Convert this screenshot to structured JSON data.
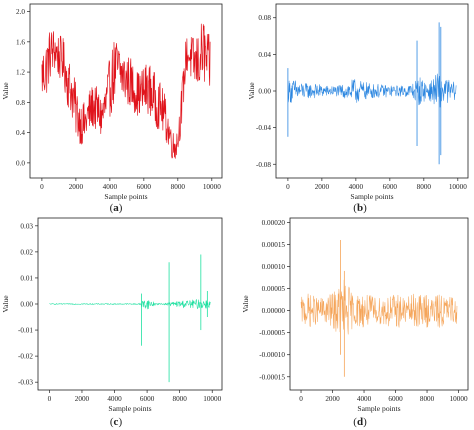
{
  "figure": {
    "panels": [
      {
        "letter_open": "(",
        "letter": "a",
        "letter_close": ")"
      },
      {
        "letter_open": "(",
        "letter": "b",
        "letter_close": ")"
      },
      {
        "letter_open": "(",
        "letter": "c",
        "letter_close": ")"
      },
      {
        "letter_open": "(",
        "letter": "d",
        "letter_close": ")"
      }
    ]
  },
  "chart_data": [
    {
      "type": "line",
      "title": "",
      "xlabel": "Sample points",
      "ylabel": "Value",
      "xlim": [
        -700,
        10600
      ],
      "ylim": [
        -0.2,
        2.1
      ],
      "xticks": [
        0,
        2000,
        4000,
        6000,
        8000,
        10000
      ],
      "yticks": [
        0.0,
        0.4,
        0.8,
        1.2,
        1.6,
        2.0
      ],
      "ytick_labels": [
        "0.0",
        "0.4",
        "0.8",
        "1.2",
        "1.6",
        "2.0"
      ],
      "color": "#e0141c",
      "series": [
        {
          "x": [
            0,
            250,
            500,
            750,
            1000,
            1250,
            1500,
            1750,
            2000,
            2250,
            2500,
            2750,
            3000,
            3250,
            3500,
            3750,
            4000,
            4250,
            4500,
            4750,
            5000,
            5250,
            5500,
            5750,
            6000,
            6250,
            6500,
            6750,
            7000,
            7250,
            7500,
            7750,
            8000,
            8250,
            8500,
            8750,
            9000,
            9250,
            9500,
            9750
          ],
          "values": [
            1.15,
            1.25,
            1.45,
            1.5,
            1.4,
            1.35,
            1.1,
            0.95,
            0.7,
            0.55,
            0.5,
            0.65,
            0.75,
            0.7,
            0.6,
            0.75,
            1.0,
            1.2,
            1.25,
            1.15,
            1.1,
            1.05,
            0.95,
            0.9,
            0.95,
            1.0,
            0.9,
            0.8,
            0.75,
            0.6,
            0.4,
            0.2,
            0.3,
            0.8,
            1.45,
            1.4,
            1.3,
            1.35,
            1.5,
            1.3
          ],
          "spread": [
            0.35,
            0.4,
            0.35,
            0.3,
            0.3,
            0.3,
            0.35,
            0.35,
            0.35,
            0.3,
            0.3,
            0.3,
            0.3,
            0.3,
            0.3,
            0.35,
            0.4,
            0.45,
            0.4,
            0.35,
            0.35,
            0.35,
            0.3,
            0.3,
            0.35,
            0.35,
            0.35,
            0.35,
            0.3,
            0.3,
            0.25,
            0.2,
            0.2,
            0.3,
            0.25,
            0.3,
            0.35,
            0.4,
            0.45,
            0.4
          ]
        }
      ]
    },
    {
      "type": "line",
      "title": "",
      "xlabel": "Sample points",
      "ylabel": "Value",
      "xlim": [
        -700,
        10600
      ],
      "ylim": [
        -0.095,
        0.095
      ],
      "xticks": [
        0,
        2000,
        4000,
        6000,
        8000,
        10000
      ],
      "yticks": [
        -0.08,
        -0.04,
        0.0,
        0.04,
        0.08
      ],
      "ytick_labels": [
        "-0.08",
        "-0.04",
        "0.00",
        "0.04",
        "0.08"
      ],
      "color": "#2b86e0",
      "series": [
        {
          "x": [
            0,
            250,
            500,
            750,
            1000,
            1250,
            1500,
            1750,
            2000,
            2250,
            2500,
            2750,
            3000,
            3250,
            3500,
            3750,
            4000,
            4250,
            4500,
            4750,
            5000,
            5250,
            5500,
            5750,
            6000,
            6250,
            6500,
            6750,
            7000,
            7250,
            7500,
            7750,
            8000,
            8250,
            8500,
            8750,
            9000,
            9250,
            9500,
            9750
          ],
          "values": [
            0,
            0,
            0,
            0,
            0,
            0,
            0,
            0,
            0,
            0,
            0,
            0,
            0,
            0,
            0,
            0,
            0,
            0,
            0,
            0,
            0,
            0,
            0,
            0,
            0,
            0,
            0,
            0,
            0,
            0,
            0,
            0,
            0,
            0,
            0,
            0,
            0,
            0,
            0,
            0
          ],
          "spread": [
            0.012,
            0.014,
            0.012,
            0.01,
            0.009,
            0.008,
            0.008,
            0.008,
            0.007,
            0.006,
            0.006,
            0.006,
            0.006,
            0.008,
            0.01,
            0.012,
            0.014,
            0.012,
            0.01,
            0.009,
            0.008,
            0.008,
            0.007,
            0.007,
            0.006,
            0.006,
            0.006,
            0.006,
            0.007,
            0.008,
            0.012,
            0.016,
            0.012,
            0.01,
            0.012,
            0.02,
            0.018,
            0.014,
            0.012,
            0.01
          ],
          "spikes": [
            {
              "x": 0,
              "min": -0.05,
              "max": 0.025
            },
            {
              "x": 7600,
              "min": -0.06,
              "max": 0.055
            },
            {
              "x": 8900,
              "min": -0.08,
              "max": 0.075
            },
            {
              "x": 9000,
              "min": -0.07,
              "max": 0.07
            }
          ]
        }
      ]
    },
    {
      "type": "line",
      "title": "",
      "xlabel": "Sample points",
      "ylabel": "Value",
      "xlim": [
        -700,
        10600
      ],
      "ylim": [
        -0.033,
        0.033
      ],
      "xticks": [
        0,
        2000,
        4000,
        6000,
        8000,
        10000
      ],
      "yticks": [
        -0.03,
        -0.02,
        -0.01,
        0.0,
        0.01,
        0.02,
        0.03
      ],
      "ytick_labels": [
        "-0.03",
        "-0.02",
        "-0.01",
        "0.00",
        "0.01",
        "0.02",
        "0.03"
      ],
      "color": "#1ee0a0",
      "series": [
        {
          "x": [
            0,
            250,
            500,
            750,
            1000,
            1250,
            1500,
            1750,
            2000,
            2250,
            2500,
            2750,
            3000,
            3250,
            3500,
            3750,
            4000,
            4250,
            4500,
            4750,
            5000,
            5250,
            5500,
            5750,
            6000,
            6250,
            6500,
            6750,
            7000,
            7250,
            7500,
            7750,
            8000,
            8250,
            8500,
            8750,
            9000,
            9250,
            9500,
            9750
          ],
          "values": [
            0,
            0,
            0,
            0,
            0,
            0,
            0,
            0,
            0,
            0,
            0,
            0,
            0,
            0,
            0,
            0,
            0,
            0,
            0,
            0,
            0,
            0,
            0,
            0,
            0,
            0,
            0,
            0,
            0,
            0,
            0,
            0,
            0,
            0,
            0,
            0,
            0,
            0,
            0,
            0
          ],
          "spread": [
            0.0002,
            0.0002,
            0.0002,
            0.0002,
            0.0002,
            0.0002,
            0.0002,
            0.0002,
            0.0002,
            0.0002,
            0.0002,
            0.0002,
            0.0002,
            0.0002,
            0.0002,
            0.0002,
            0.0002,
            0.0002,
            0.0002,
            0.0002,
            0.0002,
            0.0002,
            0.0003,
            0.0015,
            0.002,
            0.0015,
            0.0005,
            0.0003,
            0.0003,
            0.0005,
            0.0008,
            0.001,
            0.0012,
            0.0015,
            0.0015,
            0.0015,
            0.0018,
            0.002,
            0.002,
            0.0015
          ],
          "spikes": [
            {
              "x": 5650,
              "min": -0.016,
              "max": 0.004
            },
            {
              "x": 7350,
              "min": -0.03,
              "max": 0.016
            },
            {
              "x": 9300,
              "min": -0.01,
              "max": 0.019
            },
            {
              "x": 9700,
              "min": -0.005,
              "max": 0.005
            }
          ]
        }
      ]
    },
    {
      "type": "line",
      "title": "",
      "xlabel": "Sample points",
      "ylabel": "Value",
      "xlim": [
        -700,
        10600
      ],
      "ylim": [
        -0.00018,
        0.00021
      ],
      "xticks": [
        0,
        2000,
        4000,
        6000,
        8000,
        10000
      ],
      "yticks": [
        -0.00015,
        -0.0001,
        -5e-05,
        0.0,
        5e-05,
        0.0001,
        0.00015,
        0.0002
      ],
      "ytick_labels": [
        "-0.00015",
        "-0.00010",
        "-0.00005",
        "0.00000",
        "0.00005",
        "0.00010",
        "0.00015",
        "0.00020"
      ],
      "color": "#f5a55a",
      "series": [
        {
          "x": [
            0,
            250,
            500,
            750,
            1000,
            1250,
            1500,
            1750,
            2000,
            2250,
            2500,
            2750,
            3000,
            3250,
            3500,
            3750,
            4000,
            4250,
            4500,
            4750,
            5000,
            5250,
            5500,
            5750,
            6000,
            6250,
            6500,
            6750,
            7000,
            7250,
            7500,
            7750,
            8000,
            8250,
            8500,
            8750,
            9000,
            9250,
            9500,
            9750
          ],
          "values": [
            0,
            0,
            0,
            0,
            0,
            0,
            0,
            0,
            0,
            0,
            0,
            0,
            0,
            0,
            0,
            0,
            0,
            0,
            0,
            0,
            0,
            0,
            0,
            0,
            0,
            0,
            0,
            0,
            0,
            0,
            0,
            0,
            0,
            0,
            0,
            0,
            0,
            0,
            0,
            0
          ],
          "spread": [
            3e-05,
            3.5e-05,
            4e-05,
            3.5e-05,
            3e-05,
            3e-05,
            3e-05,
            3.5e-05,
            4e-05,
            5e-05,
            6e-05,
            8e-05,
            6e-05,
            4e-05,
            3.5e-05,
            4e-05,
            4e-05,
            3.5e-05,
            3.5e-05,
            3e-05,
            3e-05,
            3.5e-05,
            4e-05,
            3.5e-05,
            4e-05,
            4e-05,
            3e-05,
            3e-05,
            3.5e-05,
            4e-05,
            3.5e-05,
            4e-05,
            4e-05,
            3e-05,
            3e-05,
            4e-05,
            4e-05,
            3e-05,
            3.5e-05,
            3e-05
          ],
          "spikes": [
            {
              "x": 2500,
              "min": -0.0001,
              "max": 0.00016
            },
            {
              "x": 2750,
              "min": -0.00015,
              "max": 9e-05
            }
          ]
        }
      ]
    }
  ]
}
